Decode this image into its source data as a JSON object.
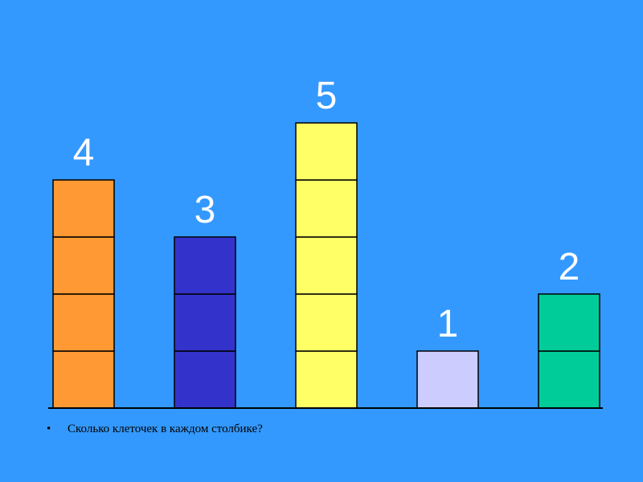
{
  "caption": {
    "bullet": "•",
    "text": "Сколько клеточек в каждом столбике?"
  },
  "chart_data": {
    "type": "bar",
    "categories": [
      "",
      "",
      "",
      "",
      ""
    ],
    "values": [
      4,
      3,
      5,
      1,
      2
    ],
    "colors": [
      "#ff9933",
      "#3333cc",
      "#ffff66",
      "#ccccff",
      "#00cc99"
    ],
    "data_labels": [
      "4",
      "3",
      "5",
      "1",
      "2"
    ],
    "ylim": [
      0,
      5
    ],
    "cells_per_unit": 1,
    "grid": false,
    "title": "",
    "xlabel": "",
    "ylabel": ""
  }
}
